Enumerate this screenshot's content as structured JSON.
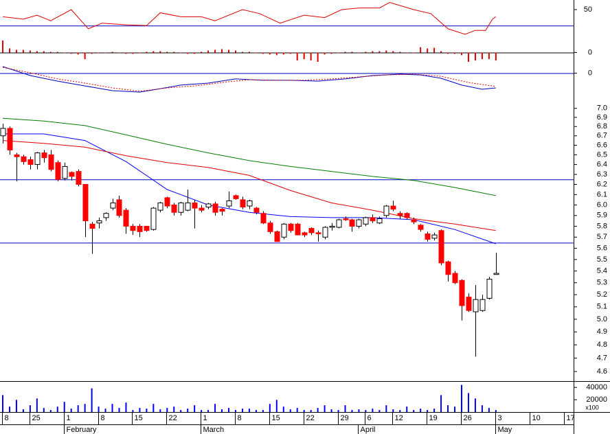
{
  "chart_data": [
    {
      "type": "line",
      "ylim": [
        13,
        62
      ],
      "yticks": [
        50
      ],
      "hlines": [
        30
      ],
      "hline_color": "#0000c0",
      "series": [
        {
          "color": "#e00000",
          "x": [
            0,
            3,
            5,
            7,
            10,
            12.5,
            14.5,
            18,
            21,
            23,
            26,
            29,
            31,
            35,
            37.5,
            40.5,
            44,
            47,
            49.5,
            52,
            55,
            56.5,
            60,
            62.5,
            65,
            67.5,
            69,
            70.5,
            71.5,
            72
          ],
          "values": [
            41,
            38,
            43,
            36,
            50,
            26,
            33,
            31,
            30,
            46,
            41,
            41,
            36,
            50,
            45,
            33,
            43,
            40,
            50,
            52,
            52,
            59,
            50,
            45,
            26,
            19,
            24,
            24,
            38,
            41
          ]
        }
      ]
    },
    {
      "type": "bar",
      "ylim": [
        -8,
        10
      ],
      "yticks": [
        0
      ],
      "hlines": [
        0
      ],
      "hline_color": "#000000",
      "color": "#e00000",
      "values": [
        9,
        3,
        2,
        2,
        1.5,
        1,
        1,
        0.5,
        0.5,
        -0.5,
        -1,
        -1.5,
        -5,
        -1,
        -0.5,
        -0.5,
        0.5,
        -0.5,
        -1,
        -1,
        -0.5,
        0.5,
        1,
        1,
        0.5,
        0.5,
        -0.5,
        -1,
        -1,
        0.5,
        1.5,
        2,
        2.5,
        2,
        1.5,
        0.5,
        0.5,
        -0.5,
        -1,
        -1.5,
        -2,
        -1.5,
        -1,
        -6,
        -5,
        -6,
        -7,
        -1.5,
        -1,
        -0.5,
        0.5,
        0.5,
        -0.5,
        0.5,
        1,
        1,
        1.5,
        1,
        0.5,
        -0.5,
        -0.5,
        4,
        3,
        3.5,
        1,
        -1,
        -1,
        -2,
        -7,
        -6,
        -5,
        -5,
        -6
      ]
    },
    {
      "type": "line",
      "ylim": [
        -15,
        5
      ],
      "yticks": [
        0
      ],
      "hlines": [
        0
      ],
      "hline_color": "#0000c0",
      "series": [
        {
          "color": "#0000c0",
          "x": [
            0,
            4,
            8,
            12,
            16,
            20,
            22,
            26,
            30,
            34,
            38,
            42,
            46,
            50,
            54,
            58,
            61,
            64,
            67,
            70,
            72
          ],
          "values": [
            3.3,
            -1.2,
            -4.0,
            -6.4,
            -8.8,
            -9.5,
            -8.4,
            -6.0,
            -5.0,
            -2.9,
            -3.6,
            -3.6,
            -4.0,
            -2.9,
            -1.2,
            -0.5,
            -0.9,
            -2.6,
            -6.0,
            -8.1,
            -7.4
          ]
        },
        {
          "color": "#e00000",
          "dashed": true,
          "x": [
            0,
            4,
            8,
            12,
            16,
            20,
            24,
            28,
            32,
            36,
            40,
            44,
            48,
            52,
            56,
            60,
            64,
            68,
            72
          ],
          "values": [
            2.9,
            0.2,
            -2.9,
            -5.0,
            -7.4,
            -9.1,
            -7.4,
            -6.4,
            -4.7,
            -3.3,
            -3.6,
            -3.6,
            -2.9,
            -1.9,
            -0.9,
            -0.5,
            -1.6,
            -4.7,
            -6.7
          ]
        }
      ]
    },
    {
      "type": "candlestick",
      "log_scale": true,
      "ylim": [
        4.53,
        7.06
      ],
      "up_color": "#ffffff",
      "down_color": "#ff0000",
      "yticks": [
        {
          "value": 7,
          "label": "7.0"
        },
        6.9,
        6.8,
        6.7,
        6.6,
        6.5,
        6.4,
        6.3,
        6.2,
        6.1,
        {
          "value": 6,
          "label": "6.0"
        },
        5.9,
        5.8,
        5.7,
        5.6,
        5.5,
        5.4,
        5.3,
        5.2,
        5.1,
        {
          "value": 5,
          "label": "5.0"
        },
        4.9,
        4.8,
        4.7,
        4.6
      ],
      "hlines": [
        6.25,
        5.65
      ],
      "hline_color": "#0000c0",
      "open": [
        6.7,
        6.78,
        6.5,
        6.48,
        6.45,
        6.4,
        6.52,
        6.5,
        6.42,
        6.26,
        6.32,
        6.33,
        6.2,
        5.82,
        5.83,
        5.88,
        5.97,
        6.05,
        5.95,
        5.8,
        5.8,
        5.8,
        5.77,
        5.95,
        6.07,
        6.0,
        5.93,
        5.95,
        6.02,
        5.97,
        5.98,
        6.01,
        5.96,
        5.99,
        6.09,
        6.05,
        5.99,
        5.97,
        5.92,
        5.83,
        5.75,
        5.7,
        5.82,
        5.82,
        5.74,
        5.78,
        5.74,
        5.7,
        5.79,
        5.79,
        5.87,
        5.86,
        5.8,
        5.82,
        5.88,
        5.83,
        5.9,
        5.99,
        5.92,
        5.92,
        5.86,
        5.81,
        5.73,
        5.69,
        5.76,
        5.48,
        5.38,
        5.32,
        5.18,
        5.06,
        5.07,
        5.17,
        5.37
      ],
      "high": [
        6.83,
        6.8,
        6.52,
        6.5,
        6.48,
        6.53,
        6.55,
        6.55,
        6.44,
        6.42,
        6.33,
        6.35,
        6.2,
        5.84,
        5.88,
        5.93,
        6.06,
        6.09,
        5.97,
        5.82,
        5.82,
        5.8,
        5.98,
        6.03,
        6.08,
        6.02,
        6.03,
        6.15,
        6.05,
        6.0,
        6.02,
        6.03,
        5.97,
        6.13,
        6.1,
        6.08,
        6.05,
        5.98,
        5.94,
        5.85,
        5.76,
        5.83,
        5.83,
        5.83,
        5.75,
        5.79,
        5.76,
        5.8,
        5.83,
        5.87,
        5.89,
        5.87,
        5.87,
        5.89,
        5.91,
        5.89,
        6.0,
        6.04,
        5.94,
        5.93,
        5.88,
        5.82,
        5.75,
        5.74,
        5.77,
        5.49,
        5.4,
        5.33,
        5.21,
        5.28,
        5.2,
        5.35,
        5.56
      ],
      "low": [
        6.62,
        6.5,
        6.23,
        6.4,
        6.35,
        6.35,
        6.42,
        6.33,
        6.23,
        6.24,
        6.24,
        6.18,
        5.7,
        5.55,
        5.78,
        5.85,
        5.95,
        5.88,
        5.73,
        5.72,
        5.7,
        5.75,
        5.76,
        5.93,
        5.97,
        5.9,
        5.9,
        5.94,
        5.78,
        5.93,
        5.96,
        5.9,
        5.9,
        5.97,
        6.05,
        5.96,
        5.96,
        5.91,
        5.82,
        5.73,
        5.66,
        5.68,
        5.74,
        5.72,
        5.7,
        5.72,
        5.66,
        5.68,
        5.76,
        5.78,
        5.85,
        5.75,
        5.78,
        5.8,
        5.83,
        5.82,
        5.88,
        5.94,
        5.87,
        5.86,
        5.82,
        5.75,
        5.66,
        5.67,
        5.45,
        5.31,
        5.29,
        4.99,
        5.06,
        4.71,
        5.06,
        5.16,
        5.37
      ],
      "close": [
        6.78,
        6.55,
        6.48,
        6.43,
        6.4,
        6.52,
        6.47,
        6.35,
        6.25,
        6.38,
        6.28,
        6.2,
        5.85,
        5.78,
        5.85,
        5.92,
        6.02,
        5.9,
        5.8,
        5.76,
        5.75,
        5.76,
        5.97,
        6.02,
        5.99,
        5.93,
        6.02,
        6.02,
        5.97,
        5.95,
        6.01,
        5.93,
        5.94,
        6.04,
        6.06,
        5.98,
        6.04,
        5.93,
        5.83,
        5.75,
        5.66,
        5.82,
        5.76,
        5.72,
        5.72,
        5.74,
        5.73,
        5.79,
        5.8,
        5.86,
        5.86,
        5.8,
        5.86,
        5.88,
        5.85,
        5.87,
        5.99,
        5.96,
        5.9,
        5.88,
        5.84,
        5.77,
        5.68,
        5.72,
        5.47,
        5.37,
        5.3,
        5.11,
        5.07,
        5.16,
        5.16,
        5.33,
        5.38
      ],
      "series": [
        {
          "color": "#0000ff",
          "x": [
            0,
            6,
            12,
            18,
            24,
            30,
            36,
            42,
            48,
            54,
            60,
            66,
            72
          ],
          "values": [
            6.72,
            6.72,
            6.65,
            6.43,
            6.15,
            6.0,
            5.93,
            5.89,
            5.88,
            5.88,
            5.86,
            5.77,
            5.64
          ]
        },
        {
          "color": "#e00000",
          "x": [
            0,
            6,
            12,
            18,
            24,
            30,
            36,
            42,
            48,
            54,
            60,
            66,
            72
          ],
          "values": [
            6.65,
            6.62,
            6.58,
            6.49,
            6.42,
            6.37,
            6.29,
            6.14,
            6.02,
            5.95,
            5.87,
            5.82,
            5.76
          ]
        },
        {
          "color": "#008000",
          "x": [
            0,
            6,
            12,
            18,
            24,
            30,
            36,
            42,
            48,
            54,
            60,
            66,
            72
          ],
          "values": [
            6.89,
            6.86,
            6.81,
            6.71,
            6.61,
            6.52,
            6.44,
            6.38,
            6.33,
            6.28,
            6.24,
            6.17,
            6.09
          ]
        }
      ]
    },
    {
      "type": "bar",
      "ylim": [
        0,
        48000
      ],
      "yticks": [
        20000,
        40000
      ],
      "unit_label": "x100",
      "color": "#0000ff",
      "values": [
        27500,
        8800,
        19800,
        4400,
        11000,
        22000,
        6600,
        3300,
        8800,
        16500,
        5500,
        11000,
        13200,
        38500,
        8800,
        5500,
        13200,
        6600,
        15400,
        3300,
        6600,
        5500,
        13200,
        4400,
        6600,
        8800,
        3300,
        5500,
        11000,
        3300,
        3300,
        13200,
        4400,
        6600,
        3300,
        5500,
        5500,
        3300,
        3300,
        13200,
        19800,
        8800,
        4400,
        6600,
        3300,
        3300,
        6600,
        11000,
        4400,
        3300,
        11000,
        3300,
        4400,
        3300,
        5500,
        3300,
        11000,
        4400,
        3300,
        8800,
        3300,
        5500,
        3300,
        5500,
        27500,
        11000,
        8800,
        44000,
        30800,
        22000,
        11000,
        6600,
        3300
      ],
      "xticks": [
        {
          "value": 0,
          "label": "8"
        },
        {
          "value": 4,
          "label": "25"
        },
        {
          "value": 9,
          "label": "1"
        },
        {
          "value": 14,
          "label": "8"
        },
        {
          "value": 19,
          "label": "15"
        },
        {
          "value": 24,
          "label": "22"
        },
        {
          "value": 29,
          "label": "1"
        },
        {
          "value": 34,
          "label": "8"
        },
        {
          "value": 39,
          "label": "15"
        },
        {
          "value": 44,
          "label": "22"
        },
        {
          "value": 49,
          "label": "29"
        },
        {
          "value": 53,
          "label": "6"
        },
        {
          "value": 57,
          "label": "12"
        },
        {
          "value": 62,
          "label": "19"
        },
        {
          "value": 67,
          "label": "26"
        },
        {
          "value": 72,
          "label": "3"
        },
        {
          "value": 77,
          "label": "10"
        },
        {
          "value": 82,
          "label": "17"
        }
      ],
      "month_labels": [
        {
          "value": 9,
          "label": "February"
        },
        {
          "value": 29,
          "label": "March"
        },
        {
          "value": 52,
          "label": "April"
        },
        {
          "value": 72,
          "label": "May"
        }
      ]
    }
  ]
}
